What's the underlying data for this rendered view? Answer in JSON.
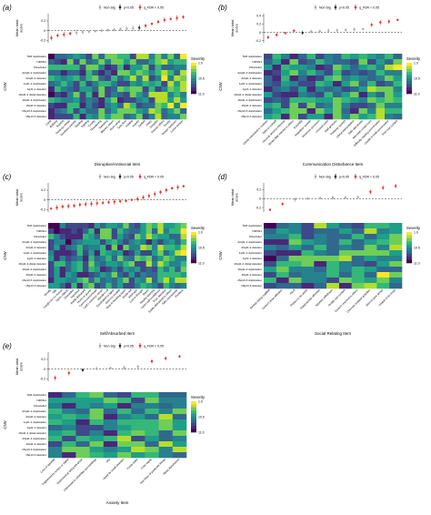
{
  "colors": {
    "nonsig": "#aaaaaa",
    "p005": "#222222",
    "fdr": "#e8302a",
    "dashed": "#222222",
    "scale": [
      "#fde725",
      "#b5de2b",
      "#6ece58",
      "#35b779",
      "#1f9e89",
      "#26828e",
      "#31688e",
      "#3e4989",
      "#482878",
      "#440154"
    ]
  },
  "legend": {
    "nonsig": "Non-Sig",
    "p005": "p<0.05",
    "fdr": "q_FDR < 0.05"
  },
  "severity": {
    "title": "Severity",
    "ticks": [
      "1.0",
      "10.5",
      "11.0"
    ]
  },
  "cnv_label": "CNV",
  "mean_label": "Mean total\nscore",
  "panels_meta": [
    "(a)",
    "(b)",
    "(c)",
    "(d)",
    "(e)"
  ],
  "chart_data": [
    {
      "panel": "(a)",
      "type": "heatmap",
      "xlabel": "Disruptive/Antisocial Item",
      "ylabel": "CNV",
      "top_ylabel": "Mean total score",
      "y_ticks": [
        "0.4",
        "0.2",
        "0",
        "-0.2"
      ],
      "cnv_rows": [
        "TAR duplication",
        "NRXN1",
        "Klinefelter",
        "22q11.2 duplication",
        "22q11.2 deletion",
        "1q21.1 duplication",
        "1q21.1 deletion",
        "16p11.2 distal deletion",
        "16p11.2 duplication",
        "16p11.2 deletion",
        "15q13.3 duplication",
        "15q13.3 deletion"
      ],
      "categories": [
        "Lying",
        "Bullying",
        "Teasing",
        "Destroys things",
        "Disobeys parents",
        "Stealing",
        "Fighting",
        "Cruelty",
        "Threatening",
        "Swearing",
        "Blames others",
        "Runs away",
        "Sets fires",
        "Irritable",
        "Argues",
        "Defiant",
        "Angry",
        "Vengeful",
        "Annoys others",
        "Touchy",
        "Temper tantrums",
        "Loses temper"
      ],
      "status": [
        "fdr",
        "fdr",
        "fdr",
        "fdr",
        "nonsig",
        "nonsig",
        "nonsig",
        "nonsig",
        "nonsig",
        "nonsig",
        "nonsig",
        "nonsig",
        "nonsig",
        "nonsig",
        "p005",
        "fdr",
        "fdr",
        "fdr",
        "fdr",
        "fdr",
        "fdr",
        "fdr"
      ],
      "values": [
        -0.15,
        -0.1,
        -0.08,
        -0.06,
        -0.04,
        -0.03,
        -0.02,
        -0.01,
        0.0,
        0.01,
        0.02,
        0.03,
        0.04,
        0.05,
        0.06,
        0.1,
        0.14,
        0.18,
        0.22,
        0.24,
        0.26,
        0.28
      ],
      "ylim": [
        -0.25,
        0.35
      ]
    },
    {
      "panel": "(b)",
      "type": "heatmap",
      "xlabel": "Communication Disturbance Item",
      "ylabel": "CNV",
      "top_ylabel": "Mean total score",
      "y_ticks": [
        "0.4",
        "0.2",
        "0",
        "-0.2"
      ],
      "cnv_rows": [
        "TAR duplication",
        "NRXN1",
        "Klinefelter",
        "22q11.2 duplication",
        "22q11.2 deletion",
        "1q21.1 duplication",
        "1q21.1 deletion",
        "16p11.2 distal deletion",
        "16p11.2 duplication",
        "16p11.2 deletion",
        "15q13.3 duplication",
        "15q13.3 deletion"
      ],
      "categories": [
        "Overly interested in routines",
        "Talks to oneself",
        "Unusual sensory interests",
        "Shows little interest in others",
        "Echolalia",
        "Repetitive speech",
        "Reverses pronouns",
        "Unusual voice",
        "Odd gestures",
        "Pedantic speech",
        "Literal interpretation",
        "Tells odd stories",
        "Misreads social cues",
        "Difficulty starting conversation",
        "Unable to hold conversation",
        "Poor eye contact"
      ],
      "status": [
        "fdr",
        "fdr",
        "fdr",
        "fdr",
        "p005",
        "nonsig",
        "nonsig",
        "nonsig",
        "nonsig",
        "nonsig",
        "nonsig",
        "nonsig",
        "fdr",
        "fdr",
        "fdr",
        "fdr"
      ],
      "values": [
        -0.12,
        -0.06,
        -0.02,
        0.04,
        -0.01,
        0.02,
        0.03,
        0.04,
        0.05,
        0.06,
        0.07,
        0.08,
        0.18,
        0.24,
        0.26,
        0.3
      ],
      "ylim": [
        -0.25,
        0.45
      ]
    },
    {
      "panel": "(c)",
      "type": "heatmap",
      "xlabel": "Self/Absorbed Item",
      "ylabel": "CNV",
      "top_ylabel": "Mean total score",
      "y_ticks": [
        "0.4",
        "0.2",
        "0",
        "-0.2"
      ],
      "cnv_rows": [
        "TAR duplication",
        "NRXN1",
        "Klinefelter",
        "22q11.2 duplication",
        "22q11.2 deletion",
        "1q21.1 duplication",
        "1q21.1 deletion",
        "16p11.2 distal deletion",
        "16p11.2 duplication",
        "16p11.2 deletion",
        "15q13.3 duplication",
        "15q13.3 deletion"
      ],
      "categories": [
        "Moody",
        "Silly",
        "Laughs for no reason",
        "Spins objects",
        "Overactive",
        "Impulsive",
        "Easily distracted",
        "Hums or grunts",
        "Cannot concentrate",
        "Lacks common sense",
        "Wanders off",
        "Fascinated by lights",
        "Gets too excited",
        "Slow in finishing tasks",
        "Easily led",
        "Interrupts",
        "Lost in thought",
        "Stares",
        "Resists learning",
        "Lacks self-confidence",
        "Poor attention",
        "Easily distracted by others",
        "Talks excessively",
        "Restless"
      ],
      "status": [
        "fdr",
        "fdr",
        "fdr",
        "fdr",
        "fdr",
        "fdr",
        "fdr",
        "fdr",
        "fdr",
        "fdr",
        "fdr",
        "fdr",
        "fdr",
        "fdr",
        "fdr",
        "fdr",
        "fdr",
        "fdr",
        "fdr",
        "fdr",
        "fdr",
        "fdr",
        "fdr",
        "fdr"
      ],
      "values": [
        -0.18,
        -0.16,
        -0.14,
        -0.13,
        -0.12,
        -0.1,
        -0.09,
        -0.08,
        -0.07,
        -0.06,
        -0.05,
        -0.04,
        -0.03,
        -0.02,
        0.0,
        0.02,
        0.05,
        0.08,
        0.12,
        0.16,
        0.2,
        0.24,
        0.26,
        0.28
      ],
      "ylim": [
        -0.25,
        0.35
      ]
    },
    {
      "panel": "(d)",
      "type": "heatmap",
      "xlabel": "Social Relating Item",
      "ylabel": "CNV",
      "top_ylabel": "Mean total score",
      "y_ticks": [
        "0.4",
        "0.2",
        "0",
        "-0.2"
      ],
      "cnv_rows": [
        "TAR duplication",
        "NRXN1",
        "Klinefelter",
        "22q11.2 duplication",
        "22q11.2 deletion",
        "1q21.1 duplication",
        "1q21.1 deletion",
        "16p11.2 distal deletion",
        "16p11.2 duplication",
        "16p11.2 deletion",
        "15q13.3 duplication",
        "15q13.3 deletion"
      ],
      "categories": [
        "Resists being cuddled",
        "Doesn't show affection",
        "Aloof",
        "Prefers to be alone",
        "Inappropriate affection",
        "Appears withdrawn",
        "Avoids eye contact",
        "Doesn't respond to others",
        "Chooses isolated activities",
        "Aloof in peer group",
        "Unable to be close"
      ],
      "status": [
        "fdr",
        "fdr",
        "nonsig",
        "nonsig",
        "nonsig",
        "nonsig",
        "nonsig",
        "nonsig",
        "fdr",
        "fdr",
        "fdr"
      ],
      "values": [
        -0.25,
        -0.12,
        -0.02,
        0.0,
        0.01,
        0.02,
        0.02,
        0.03,
        0.15,
        0.24,
        0.28
      ],
      "ylim": [
        -0.3,
        0.35
      ]
    },
    {
      "panel": "(e)",
      "type": "heatmap",
      "xlabel": "Anxiety Item",
      "ylabel": "CNV",
      "top_ylabel": "Mean total score",
      "y_ticks": [
        "0.4",
        "0.2",
        "0",
        "-0.2"
      ],
      "cnv_rows": [
        "TAR duplication",
        "NRXN1",
        "Klinefelter",
        "22q11.2 duplication",
        "22q11.2 deletion",
        "1q21.1 duplication",
        "1q21.1 deletion",
        "16p11.2 distal deletion",
        "16p11.2 duplication",
        "16p11.2 deletion",
        "15q13.3 duplication",
        "15q13.3 deletion"
      ],
      "categories": [
        "Loss of appetite",
        "Frightened by noises or sights",
        "Distressed at being left alone",
        "Distressed in unfamiliar surroundings",
        "Shy",
        "Upset by small changes",
        "Fussy eater",
        "Cries easily",
        "Has fears of particular things",
        "Sleep disturbance"
      ],
      "status": [
        "fdr",
        "fdr",
        "p005",
        "nonsig",
        "nonsig",
        "nonsig",
        "nonsig",
        "fdr",
        "fdr",
        "fdr"
      ],
      "values": [
        -0.18,
        -0.08,
        -0.02,
        0.01,
        0.02,
        0.03,
        0.05,
        0.16,
        0.22,
        0.26
      ],
      "ylim": [
        -0.25,
        0.35
      ]
    }
  ]
}
